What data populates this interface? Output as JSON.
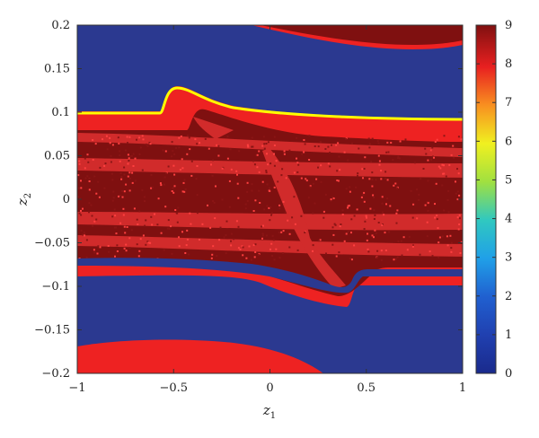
{
  "chart_data": {
    "type": "heatmap",
    "title": "",
    "xlabel": "z",
    "xlabel_sub": "1",
    "ylabel": "z",
    "ylabel_sub": "2",
    "xlim": [
      -1,
      1
    ],
    "ylim": [
      -0.2,
      0.2
    ],
    "x_ticks": [
      -1,
      -0.5,
      0,
      0.5,
      1
    ],
    "x_tick_labels": [
      "−1",
      "−0.5",
      "0",
      "0.5",
      "1"
    ],
    "y_ticks": [
      -0.2,
      -0.15,
      -0.1,
      -0.05,
      0,
      0.05,
      0.1,
      0.15,
      0.2
    ],
    "y_tick_labels": [
      "−0.2",
      "−0.15",
      "−0.1",
      "−0.05",
      "0",
      "0.05",
      "0.1",
      "0.15",
      "0.2"
    ],
    "colorbar": {
      "range": [
        0,
        9
      ],
      "ticks": [
        0,
        1,
        2,
        3,
        4,
        5,
        6,
        7,
        8,
        9
      ],
      "tick_labels": [
        "0",
        "1",
        "2",
        "3",
        "4",
        "5",
        "6",
        "7",
        "8",
        "9"
      ],
      "colormap": "jet"
    },
    "regions": [
      {
        "value": 0,
        "color": "#2b3990",
        "desc": "background"
      },
      {
        "value": 9,
        "color": "#7f1010",
        "desc": "top band"
      },
      {
        "value": 8,
        "color": "#ee2222",
        "desc": "band edges and speckle"
      },
      {
        "value": 6,
        "color": "#ffff00",
        "desc": "thin upper boundary"
      }
    ],
    "grid": false
  }
}
